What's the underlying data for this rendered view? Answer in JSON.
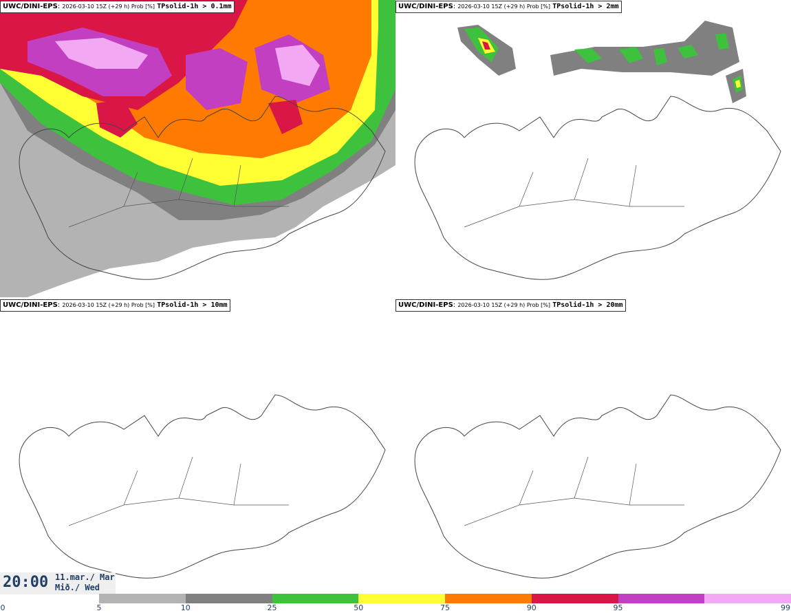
{
  "panels": [
    {
      "model": "UWC/DINI-EPS",
      "run": "2026-03-10 15Z (+29 h) Prob [%]",
      "field": "TPsolid-1h > 0.1mm"
    },
    {
      "model": "UWC/DINI-EPS",
      "run": "2026-03-10 15Z (+29 h) Prob [%]",
      "field": "TPsolid-1h > 2mm"
    },
    {
      "model": "UWC/DINI-EPS",
      "run": "2026-03-10 15Z (+29 h) Prob [%]",
      "field": "TPsolid-1h > 10mm"
    },
    {
      "model": "UWC/DINI-EPS",
      "run": "2026-03-10 15Z (+29 h) Prob [%]",
      "field": "TPsolid-1h > 20mm"
    }
  ],
  "valid_time": {
    "time": "20:00",
    "date_line1": "11.mar./ Mar",
    "date_line2": "Mið./ Wed"
  },
  "colorbar": {
    "ticks": [
      "0",
      "5",
      "10",
      "25",
      "50",
      "75",
      "90",
      "95",
      "99"
    ],
    "colors": [
      "#b3b3b3",
      "#808080",
      "#3ec23e",
      "#ffff33",
      "#ff7a00",
      "#d91645",
      "#c23fc2",
      "#f2a8f2"
    ]
  }
}
